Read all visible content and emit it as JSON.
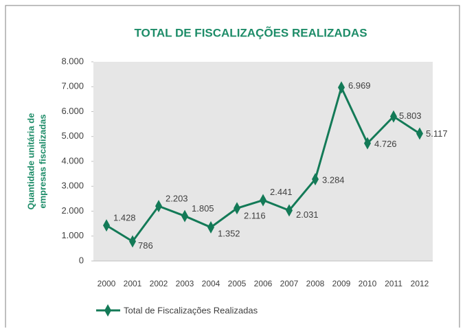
{
  "chart_data": {
    "type": "line",
    "title": "TOTAL DE FISCALIZAÇÕES REALIZADAS",
    "y_label": [
      "Quantidade unitária de",
      "empresas fiscalizadas"
    ],
    "categories": [
      "2000",
      "2001",
      "2002",
      "2003",
      "2004",
      "2005",
      "2006",
      "2007",
      "2008",
      "2009",
      "2010",
      "2011",
      "2012"
    ],
    "series": [
      {
        "name": "Total de Fiscalizações Realizadas",
        "color": "#137a57",
        "values": [
          1428,
          786,
          2203,
          1805,
          1352,
          2116,
          2441,
          2031,
          3284,
          6969,
          4726,
          5803,
          5117
        ],
        "value_labels": [
          "1.428",
          "786",
          "2.203",
          "1.805",
          "1.352",
          "2.116",
          "2.441",
          "2.031",
          "3.284",
          "6.969",
          "4.726",
          "5.803",
          "5.117"
        ]
      }
    ],
    "ylim": [
      0,
      8000
    ],
    "yticks": [
      0,
      {
        "value": 1000,
        "label": "1.000"
      },
      {
        "value": 2000,
        "label": "2.000"
      },
      {
        "value": 3000,
        "label": "3.000"
      },
      {
        "value": 4000,
        "label": "4.000"
      },
      {
        "value": 5000,
        "label": "5.000"
      },
      {
        "value": 6000,
        "label": "6.000"
      },
      {
        "value": 7000,
        "label": "7.000"
      },
      {
        "value": 8000,
        "label": "8.000"
      }
    ],
    "grid": false,
    "legend": "bottom-left"
  }
}
